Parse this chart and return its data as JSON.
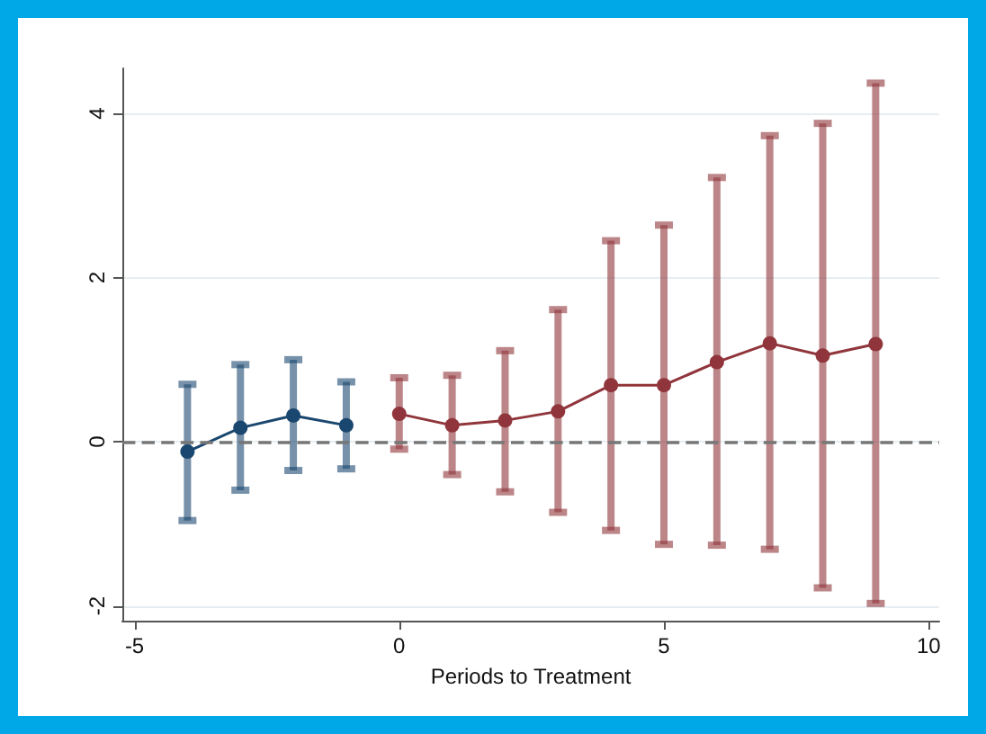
{
  "chart_data": {
    "type": "line",
    "xlabel": "Periods to Treatment",
    "xlim": [
      -5.23,
      10.2
    ],
    "xticks": [
      -5,
      0,
      5,
      10
    ],
    "ylim": [
      -2.18,
      4.55
    ],
    "yticks": [
      -2,
      0,
      2,
      4
    ],
    "grid": "y",
    "marker": "circle",
    "line_style": "solid",
    "series": [
      {
        "color": "#1a476f",
        "x": [
          -4,
          -3,
          -2,
          -1
        ],
        "values": [
          -0.12,
          0.17,
          0.32,
          0.2
        ],
        "errors": [
          [
            -0.96,
            0.7
          ],
          [
            -0.59,
            0.94
          ],
          [
            -0.35,
            1.0
          ],
          [
            -0.33,
            0.73
          ]
        ]
      },
      {
        "color": "#90353b",
        "x": [
          0,
          1,
          2,
          3,
          4,
          5,
          6,
          7,
          8,
          9
        ],
        "values": [
          0.34,
          0.2,
          0.26,
          0.37,
          0.69,
          0.69,
          0.97,
          1.2,
          1.05,
          1.19
        ],
        "errors": [
          [
            -0.09,
            0.78
          ],
          [
            -0.4,
            0.81
          ],
          [
            -0.61,
            1.11
          ],
          [
            -0.86,
            1.61
          ],
          [
            -1.08,
            2.45
          ],
          [
            -1.25,
            2.64
          ],
          [
            -1.26,
            3.22
          ],
          [
            -1.31,
            3.73
          ],
          [
            -1.78,
            3.88
          ],
          [
            -1.97,
            4.37
          ]
        ]
      }
    ],
    "ref_lines": [
      {
        "axis": "y",
        "value": 0,
        "color": "#777777",
        "line_style": "dashed"
      }
    ]
  }
}
